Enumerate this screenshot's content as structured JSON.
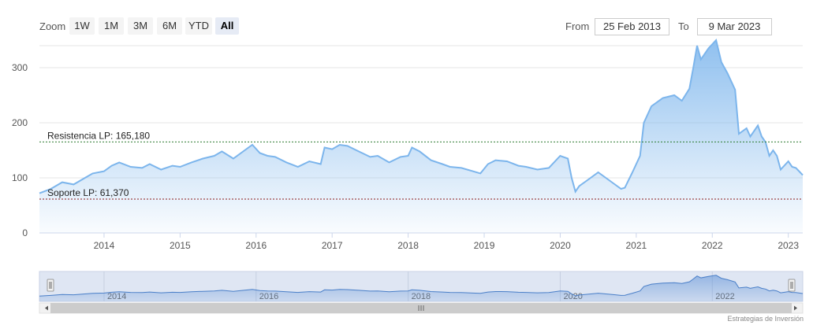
{
  "toolbar": {
    "zoom_label": "Zoom",
    "buttons": [
      {
        "label": "1W",
        "active": false
      },
      {
        "label": "1M",
        "active": false
      },
      {
        "label": "3M",
        "active": false
      },
      {
        "label": "6M",
        "active": false
      },
      {
        "label": "YTD",
        "active": false
      },
      {
        "label": "All",
        "active": true
      }
    ],
    "from_label": "From",
    "from_value": "25 Feb 2013",
    "to_label": "To",
    "to_value": "9 Mar 2023"
  },
  "credits": "Estrategias de Inversión",
  "chart_data": {
    "type": "area",
    "x_range": [
      2013.15,
      2023.19
    ],
    "ylim": [
      0,
      340
    ],
    "y_ticks": [
      0,
      100,
      200,
      300
    ],
    "x_tick_labels": [
      "2014",
      "2015",
      "2016",
      "2017",
      "2018",
      "2019",
      "2020",
      "2021",
      "2022",
      "2023"
    ],
    "navigator_labels": [
      "2014",
      "2016",
      "2018",
      "2020",
      "2022"
    ],
    "series": [
      {
        "x": [
          2013.15,
          2013.3,
          2013.45,
          2013.6,
          2013.75,
          2013.85,
          2014.0,
          2014.1,
          2014.2,
          2014.35,
          2014.5,
          2014.6,
          2014.75,
          2014.9,
          2015.0,
          2015.15,
          2015.3,
          2015.45,
          2015.55,
          2015.7,
          2015.85,
          2015.95,
          2016.05,
          2016.15,
          2016.25,
          2016.4,
          2016.55,
          2016.7,
          2016.85,
          2016.9,
          2017.0,
          2017.1,
          2017.2,
          2017.35,
          2017.5,
          2017.6,
          2017.75,
          2017.9,
          2018.0,
          2018.05,
          2018.15,
          2018.3,
          2018.45,
          2018.55,
          2018.7,
          2018.85,
          2018.95,
          2019.05,
          2019.15,
          2019.3,
          2019.45,
          2019.55,
          2019.7,
          2019.85,
          2020.0,
          2020.1,
          2020.15,
          2020.2,
          2020.25,
          2020.35,
          2020.5,
          2020.6,
          2020.7,
          2020.8,
          2020.85,
          2020.95,
          2021.05,
          2021.1,
          2021.2,
          2021.35,
          2021.5,
          2021.6,
          2021.7,
          2021.75,
          2021.8,
          2021.85,
          2021.95,
          2022.05,
          2022.12,
          2022.2,
          2022.3,
          2022.35,
          2022.45,
          2022.5,
          2022.6,
          2022.65,
          2022.7,
          2022.75,
          2022.8,
          2022.85,
          2022.9,
          2023.0,
          2023.05,
          2023.1,
          2023.19
        ],
        "y": [
          72,
          80,
          92,
          88,
          100,
          108,
          112,
          122,
          128,
          120,
          118,
          125,
          115,
          122,
          120,
          128,
          135,
          140,
          148,
          135,
          150,
          160,
          145,
          140,
          138,
          128,
          120,
          130,
          125,
          155,
          152,
          160,
          158,
          148,
          138,
          140,
          128,
          138,
          140,
          155,
          148,
          132,
          125,
          120,
          118,
          112,
          108,
          125,
          132,
          130,
          122,
          120,
          115,
          118,
          140,
          135,
          100,
          75,
          85,
          95,
          110,
          100,
          90,
          80,
          82,
          110,
          140,
          200,
          230,
          245,
          250,
          240,
          262,
          300,
          340,
          315,
          335,
          350,
          310,
          290,
          260,
          180,
          190,
          175,
          195,
          175,
          165,
          140,
          150,
          140,
          115,
          130,
          120,
          118,
          105
        ]
      }
    ],
    "annotations": [
      {
        "label": "Resistencia LP: 165,180",
        "value": 165.18,
        "color": "#2e7d32"
      },
      {
        "label": "Soporte LP: 61,370",
        "value": 61.37,
        "color": "#8b1a1a"
      }
    ]
  }
}
